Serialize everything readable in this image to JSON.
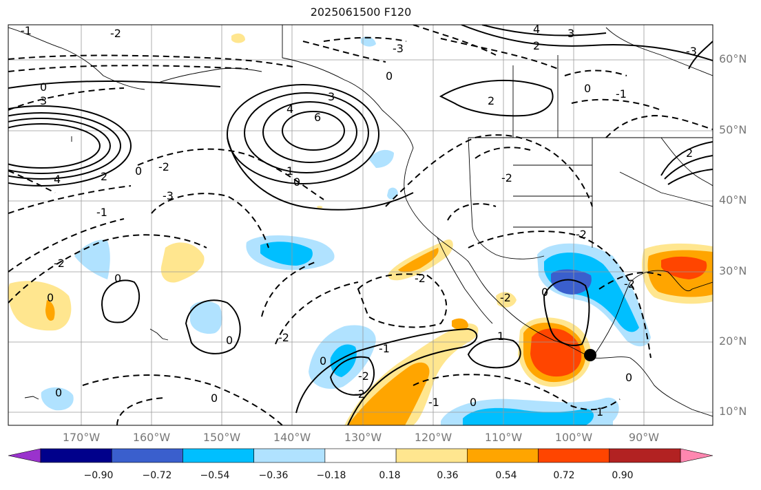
{
  "title": "2025061500 F120",
  "lat_labels": [
    "60°N",
    "50°N",
    "40°N",
    "30°N",
    "20°N",
    "10°N"
  ],
  "lon_labels": [
    "170°W",
    "160°W",
    "150°W",
    "140°W",
    "130°W",
    "120°W",
    "110°W",
    "100°W",
    "90°W"
  ],
  "colorbar": {
    "ticks": [
      "−0.90",
      "−0.72",
      "−0.54",
      "−0.36",
      "−0.18",
      "0.18",
      "0.36",
      "0.54",
      "0.72",
      "0.90"
    ],
    "colors": [
      "#9a32cd",
      "#00008b",
      "#3a5fcd",
      "#00bfff",
      "#b0e2ff",
      "#ffffff",
      "#ffe68f",
      "#ffa500",
      "#ff4500",
      "#b22222",
      "#ff87b0"
    ]
  },
  "contour_labels": {
    "neg1_top_left": "-1",
    "neg2_top": "-2",
    "neg3_top": "-3",
    "zero_top": "0",
    "two_top": "2",
    "four_top": "4",
    "three_top_right": "3",
    "zero_left": "0",
    "three_left": "3",
    "four_left": "4",
    "two_left": "2",
    "zero_mid": "0",
    "neg2_mid": "-2",
    "neg1_left": "-1",
    "neg3_mid": "-3",
    "neg2_lower_left": "-2",
    "zero_lower_left": "0",
    "four_pac": "4",
    "six_pac": "6",
    "three_pac": "3",
    "one_coast": "1",
    "zero_coast": "0",
    "two_canada": "2",
    "zero_canada": "0",
    "neg1_canada": "-1",
    "neg2_plains": "-2",
    "neg2_east": "-2",
    "neg2_gulf": "-2",
    "neg2_sw": "-2",
    "neg2_mx": "-2",
    "zero_mx": "0",
    "one_mx": "1",
    "neg1_pac": "-1",
    "neg2_pac": "-2",
    "zero_pac": "0",
    "zero_pac2": "0",
    "neg1_south": "-1",
    "zero_south": "0",
    "neg2_s2": "-2",
    "neg2_s3": "-2",
    "two_s": "2",
    "zero_cuba": "0",
    "one_rt": "1",
    "zero_rt": "0",
    "neg3_rt": "-3",
    "zero_hw": "0",
    "zero_se": "0"
  },
  "marker": {
    "label": "storm-center",
    "lat": 18,
    "lon": -97
  }
}
